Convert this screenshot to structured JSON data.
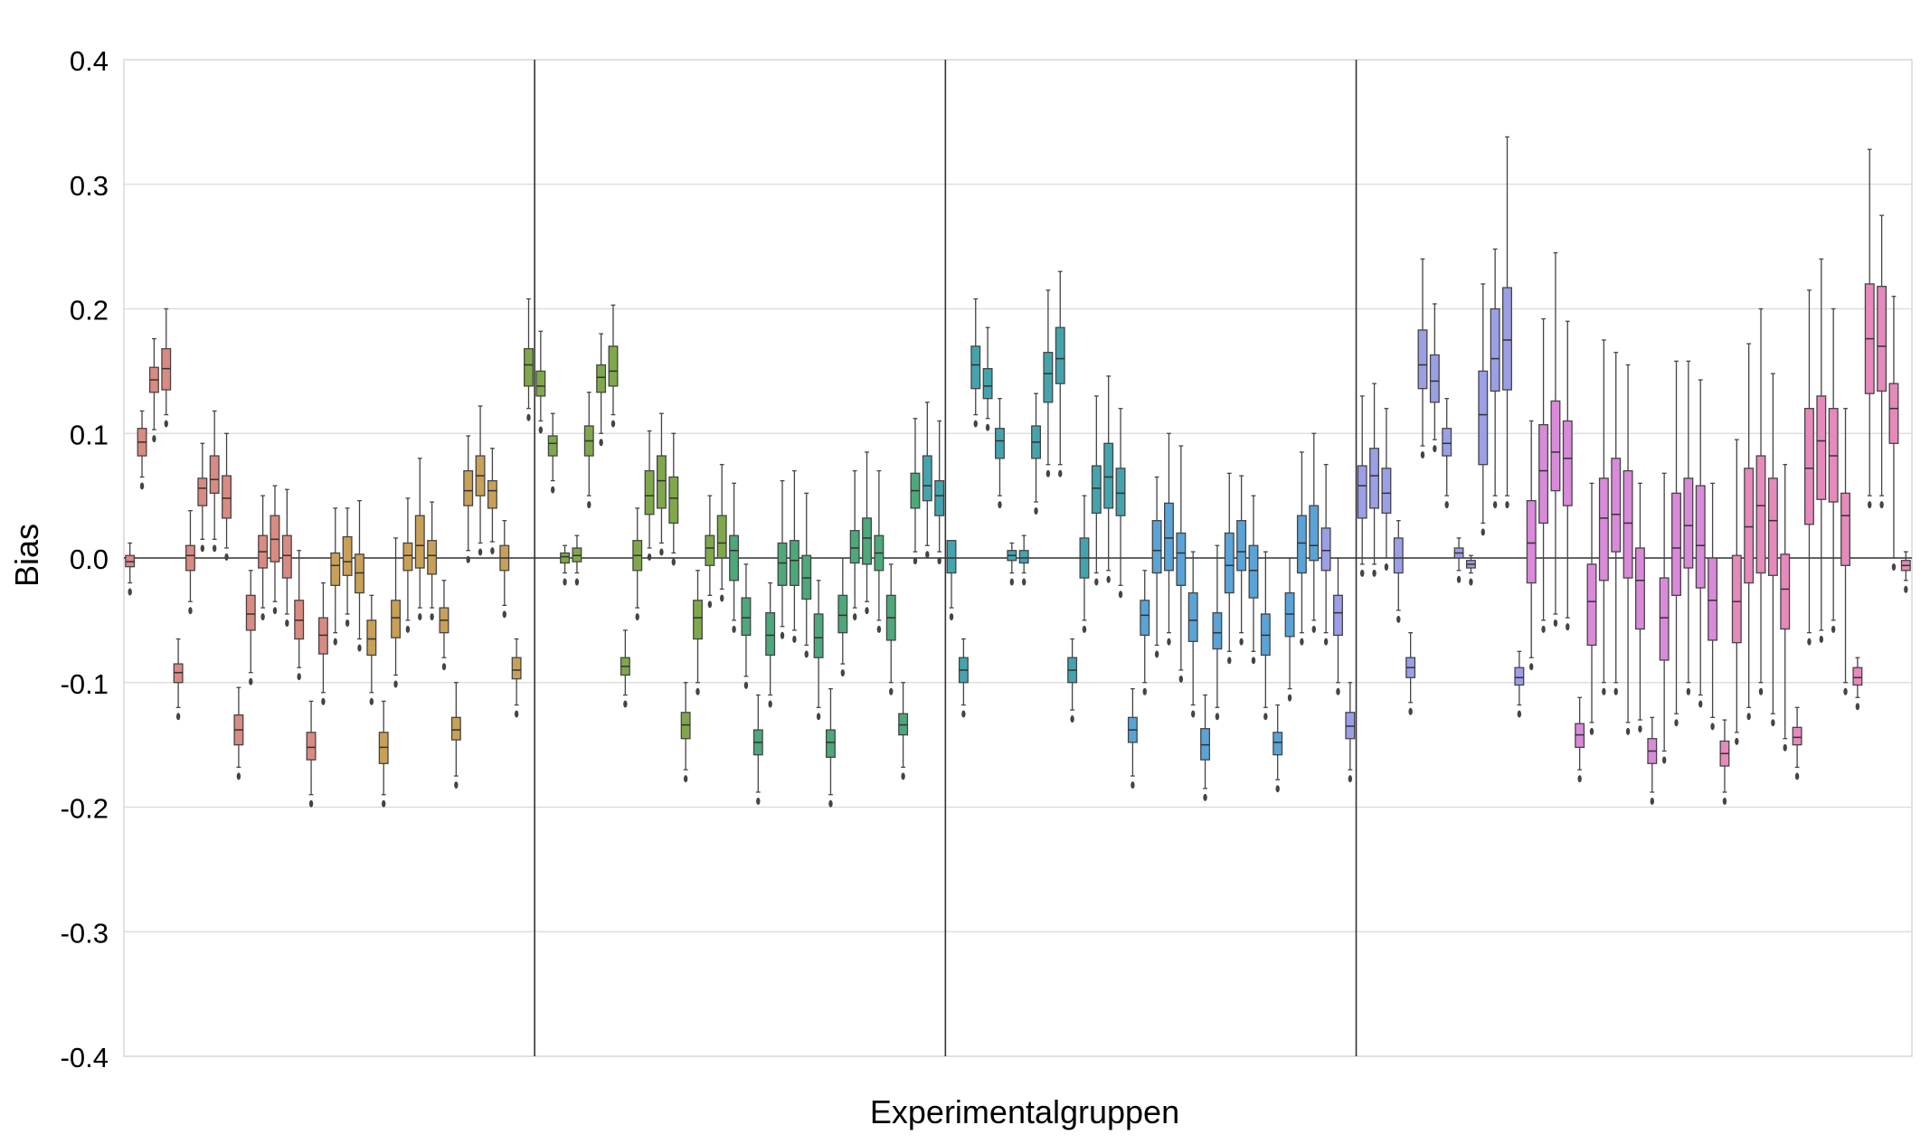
{
  "chart_data": {
    "type": "box",
    "title": "",
    "xlabel": "Experimentalgruppen",
    "ylabel": "Bias",
    "ylim": [
      -0.4,
      0.4
    ],
    "yticks": [
      0.4,
      0.3,
      0.2,
      0.1,
      0.0,
      -0.1,
      -0.2,
      -0.3,
      -0.4
    ],
    "ytick_labels": [
      "0.4",
      "0.3",
      "0.2",
      "0.1",
      "0.0",
      "-0.1",
      "-0.2",
      "-0.3",
      "-0.4"
    ],
    "grid": "horizontal",
    "reference_line": 0.0,
    "group_separators_after_box": [
      34,
      68,
      102
    ],
    "group_colors": [
      "#d98a82",
      "#c9a057",
      "#7fa84b",
      "#4da87a",
      "#44a4ad",
      "#5aa3d6",
      "#9b9fe6",
      "#d98ad9",
      "#e58abb"
    ],
    "boxes": [
      {
        "q1": -0.007,
        "median": -0.003,
        "q3": 0.002,
        "wlo": -0.02,
        "whi": 0.012
      },
      {
        "q1": 0.082,
        "median": 0.093,
        "q3": 0.104,
        "wlo": 0.065,
        "whi": 0.118
      },
      {
        "q1": 0.133,
        "median": 0.143,
        "q3": 0.153,
        "wlo": 0.103,
        "whi": 0.176
      },
      {
        "q1": 0.135,
        "median": 0.152,
        "q3": 0.168,
        "wlo": 0.115,
        "whi": 0.2
      },
      {
        "q1": -0.1,
        "median": -0.092,
        "q3": -0.085,
        "wlo": -0.12,
        "whi": -0.065
      },
      {
        "q1": -0.01,
        "median": 0.002,
        "q3": 0.01,
        "wlo": -0.035,
        "whi": 0.038
      },
      {
        "q1": 0.042,
        "median": 0.056,
        "q3": 0.064,
        "wlo": 0.015,
        "whi": 0.092
      },
      {
        "q1": 0.052,
        "median": 0.063,
        "q3": 0.082,
        "wlo": 0.015,
        "whi": 0.118
      },
      {
        "q1": 0.032,
        "median": 0.048,
        "q3": 0.066,
        "wlo": 0.008,
        "whi": 0.1
      },
      {
        "q1": -0.15,
        "median": -0.138,
        "q3": -0.126,
        "wlo": -0.168,
        "whi": -0.104
      },
      {
        "q1": -0.058,
        "median": -0.045,
        "q3": -0.03,
        "wlo": -0.092,
        "whi": -0.01
      },
      {
        "q1": -0.008,
        "median": 0.005,
        "q3": 0.018,
        "wlo": -0.04,
        "whi": 0.05
      },
      {
        "q1": -0.003,
        "median": 0.015,
        "q3": 0.034,
        "wlo": -0.035,
        "whi": 0.058
      },
      {
        "q1": -0.016,
        "median": 0.002,
        "q3": 0.018,
        "wlo": -0.045,
        "whi": 0.055
      },
      {
        "q1": -0.065,
        "median": -0.05,
        "q3": -0.034,
        "wlo": -0.088,
        "whi": 0.006
      },
      {
        "q1": -0.162,
        "median": -0.152,
        "q3": -0.14,
        "wlo": -0.19,
        "whi": -0.115
      },
      {
        "q1": -0.077,
        "median": -0.062,
        "q3": -0.048,
        "wlo": -0.108,
        "whi": -0.02
      },
      {
        "q1": -0.022,
        "median": -0.006,
        "q3": 0.004,
        "wlo": -0.06,
        "whi": 0.04
      },
      {
        "q1": -0.014,
        "median": -0.003,
        "q3": 0.017,
        "wlo": -0.045,
        "whi": 0.04
      },
      {
        "q1": -0.028,
        "median": -0.012,
        "q3": 0.003,
        "wlo": -0.065,
        "whi": 0.046
      },
      {
        "q1": -0.078,
        "median": -0.065,
        "q3": -0.05,
        "wlo": -0.108,
        "whi": -0.03
      },
      {
        "q1": -0.165,
        "median": -0.152,
        "q3": -0.14,
        "wlo": -0.19,
        "whi": -0.115
      },
      {
        "q1": -0.064,
        "median": -0.048,
        "q3": -0.034,
        "wlo": -0.094,
        "whi": 0.016
      },
      {
        "q1": -0.01,
        "median": 0.002,
        "q3": 0.012,
        "wlo": -0.05,
        "whi": 0.048
      },
      {
        "q1": -0.008,
        "median": 0.01,
        "q3": 0.034,
        "wlo": -0.04,
        "whi": 0.08
      },
      {
        "q1": -0.013,
        "median": 0.002,
        "q3": 0.014,
        "wlo": -0.04,
        "whi": 0.045
      },
      {
        "q1": -0.06,
        "median": -0.05,
        "q3": -0.04,
        "wlo": -0.08,
        "whi": -0.018
      },
      {
        "q1": -0.146,
        "median": -0.138,
        "q3": -0.128,
        "wlo": -0.175,
        "whi": -0.1
      },
      {
        "q1": 0.042,
        "median": 0.054,
        "q3": 0.07,
        "wlo": 0.006,
        "whi": 0.098
      },
      {
        "q1": 0.05,
        "median": 0.066,
        "q3": 0.082,
        "wlo": 0.012,
        "whi": 0.122
      },
      {
        "q1": 0.04,
        "median": 0.054,
        "q3": 0.062,
        "wlo": 0.013,
        "whi": 0.088
      },
      {
        "q1": -0.01,
        "median": 0.0,
        "q3": 0.01,
        "wlo": -0.038,
        "whi": 0.03
      },
      {
        "q1": -0.097,
        "median": -0.09,
        "q3": -0.08,
        "wlo": -0.118,
        "whi": -0.065
      },
      {
        "q1": 0.138,
        "median": 0.155,
        "q3": 0.168,
        "wlo": 0.12,
        "whi": 0.208
      },
      {
        "q1": 0.13,
        "median": 0.138,
        "q3": 0.15,
        "wlo": 0.11,
        "whi": 0.182
      },
      {
        "q1": 0.082,
        "median": 0.092,
        "q3": 0.098,
        "wlo": 0.062,
        "whi": 0.116
      },
      {
        "q1": -0.004,
        "median": 0.001,
        "q3": 0.004,
        "wlo": -0.012,
        "whi": 0.01
      },
      {
        "q1": -0.003,
        "median": 0.002,
        "q3": 0.008,
        "wlo": -0.012,
        "whi": 0.018
      },
      {
        "q1": 0.082,
        "median": 0.094,
        "q3": 0.106,
        "wlo": 0.05,
        "whi": 0.133
      },
      {
        "q1": 0.133,
        "median": 0.145,
        "q3": 0.155,
        "wlo": 0.1,
        "whi": 0.18
      },
      {
        "q1": 0.138,
        "median": 0.15,
        "q3": 0.17,
        "wlo": 0.115,
        "whi": 0.203
      },
      {
        "q1": -0.094,
        "median": -0.087,
        "q3": -0.08,
        "wlo": -0.11,
        "whi": -0.058
      },
      {
        "q1": -0.01,
        "median": 0.002,
        "q3": 0.014,
        "wlo": -0.04,
        "whi": 0.04
      },
      {
        "q1": 0.035,
        "median": 0.05,
        "q3": 0.07,
        "wlo": 0.008,
        "whi": 0.102
      },
      {
        "q1": 0.04,
        "median": 0.062,
        "q3": 0.082,
        "wlo": 0.012,
        "whi": 0.116
      },
      {
        "q1": 0.028,
        "median": 0.048,
        "q3": 0.065,
        "wlo": 0.004,
        "whi": 0.1
      },
      {
        "q1": -0.145,
        "median": -0.134,
        "q3": -0.124,
        "wlo": -0.17,
        "whi": -0.1
      },
      {
        "q1": -0.065,
        "median": -0.048,
        "q3": -0.034,
        "wlo": -0.1,
        "whi": -0.01
      },
      {
        "q1": -0.006,
        "median": 0.008,
        "q3": 0.018,
        "wlo": -0.03,
        "whi": 0.05
      },
      {
        "q1": 0.0,
        "median": 0.012,
        "q3": 0.034,
        "wlo": -0.025,
        "whi": 0.075
      },
      {
        "q1": -0.018,
        "median": 0.006,
        "q3": 0.018,
        "wlo": -0.05,
        "whi": 0.06
      },
      {
        "q1": -0.062,
        "median": -0.048,
        "q3": -0.032,
        "wlo": -0.095,
        "whi": -0.005
      },
      {
        "q1": -0.158,
        "median": -0.148,
        "q3": -0.138,
        "wlo": -0.188,
        "whi": -0.11
      },
      {
        "q1": -0.078,
        "median": -0.062,
        "q3": -0.044,
        "wlo": -0.11,
        "whi": -0.02
      },
      {
        "q1": -0.022,
        "median": -0.004,
        "q3": 0.012,
        "wlo": -0.055,
        "whi": 0.062
      },
      {
        "q1": -0.022,
        "median": -0.002,
        "q3": 0.014,
        "wlo": -0.058,
        "whi": 0.07
      },
      {
        "q1": -0.033,
        "median": -0.016,
        "q3": 0.002,
        "wlo": -0.07,
        "whi": 0.052
      },
      {
        "q1": -0.08,
        "median": -0.064,
        "q3": -0.045,
        "wlo": -0.12,
        "whi": -0.018
      },
      {
        "q1": -0.16,
        "median": -0.148,
        "q3": -0.138,
        "wlo": -0.19,
        "whi": -0.105
      },
      {
        "q1": -0.06,
        "median": -0.046,
        "q3": -0.03,
        "wlo": -0.085,
        "whi": 0.0
      },
      {
        "q1": -0.004,
        "median": 0.008,
        "q3": 0.022,
        "wlo": -0.04,
        "whi": 0.07
      },
      {
        "q1": -0.005,
        "median": 0.016,
        "q3": 0.032,
        "wlo": -0.035,
        "whi": 0.085
      },
      {
        "q1": -0.01,
        "median": 0.004,
        "q3": 0.018,
        "wlo": -0.05,
        "whi": 0.07
      },
      {
        "q1": -0.066,
        "median": -0.048,
        "q3": -0.03,
        "wlo": -0.1,
        "whi": -0.005
      },
      {
        "q1": -0.142,
        "median": -0.134,
        "q3": -0.125,
        "wlo": -0.168,
        "whi": -0.1
      },
      {
        "q1": 0.04,
        "median": 0.054,
        "q3": 0.068,
        "wlo": 0.005,
        "whi": 0.112
      },
      {
        "q1": 0.046,
        "median": 0.058,
        "q3": 0.082,
        "wlo": 0.01,
        "whi": 0.125
      },
      {
        "q1": 0.034,
        "median": 0.05,
        "q3": 0.062,
        "wlo": 0.005,
        "whi": 0.11
      },
      {
        "q1": -0.012,
        "median": 0.0,
        "q3": 0.014,
        "wlo": -0.04,
        "whi": 0.012
      },
      {
        "q1": -0.1,
        "median": -0.09,
        "q3": -0.08,
        "wlo": -0.118,
        "whi": -0.065
      },
      {
        "q1": 0.136,
        "median": 0.155,
        "q3": 0.17,
        "wlo": 0.115,
        "whi": 0.208
      },
      {
        "q1": 0.128,
        "median": 0.138,
        "q3": 0.152,
        "wlo": 0.112,
        "whi": 0.185
      },
      {
        "q1": 0.08,
        "median": 0.094,
        "q3": 0.104,
        "wlo": 0.05,
        "whi": 0.128
      },
      {
        "q1": -0.002,
        "median": 0.002,
        "q3": 0.006,
        "wlo": -0.012,
        "whi": 0.012
      },
      {
        "q1": -0.004,
        "median": 0.0,
        "q3": 0.006,
        "wlo": -0.012,
        "whi": 0.018
      },
      {
        "q1": 0.08,
        "median": 0.093,
        "q3": 0.106,
        "wlo": 0.045,
        "whi": 0.132
      },
      {
        "q1": 0.125,
        "median": 0.148,
        "q3": 0.165,
        "wlo": 0.075,
        "whi": 0.215
      },
      {
        "q1": 0.14,
        "median": 0.16,
        "q3": 0.185,
        "wlo": 0.075,
        "whi": 0.23
      },
      {
        "q1": -0.1,
        "median": -0.09,
        "q3": -0.08,
        "wlo": -0.122,
        "whi": -0.065
      },
      {
        "q1": -0.016,
        "median": 0.0,
        "q3": 0.016,
        "wlo": -0.05,
        "whi": 0.05
      },
      {
        "q1": 0.036,
        "median": 0.056,
        "q3": 0.074,
        "wlo": -0.012,
        "whi": 0.13
      },
      {
        "q1": 0.04,
        "median": 0.065,
        "q3": 0.092,
        "wlo": -0.01,
        "whi": 0.146
      },
      {
        "q1": 0.034,
        "median": 0.052,
        "q3": 0.072,
        "wlo": -0.022,
        "whi": 0.12
      },
      {
        "q1": -0.148,
        "median": -0.138,
        "q3": -0.128,
        "wlo": -0.175,
        "whi": -0.105
      },
      {
        "q1": -0.062,
        "median": -0.046,
        "q3": -0.034,
        "wlo": -0.1,
        "whi": -0.01
      },
      {
        "q1": -0.012,
        "median": 0.006,
        "q3": 0.03,
        "wlo": -0.07,
        "whi": 0.065
      },
      {
        "q1": -0.01,
        "median": 0.016,
        "q3": 0.044,
        "wlo": -0.06,
        "whi": 0.1
      },
      {
        "q1": -0.022,
        "median": 0.004,
        "q3": 0.02,
        "wlo": -0.09,
        "whi": 0.09
      },
      {
        "q1": -0.067,
        "median": -0.05,
        "q3": -0.028,
        "wlo": -0.118,
        "whi": 0.005
      },
      {
        "q1": -0.162,
        "median": -0.15,
        "q3": -0.137,
        "wlo": -0.185,
        "whi": -0.11
      },
      {
        "q1": -0.073,
        "median": -0.06,
        "q3": -0.044,
        "wlo": -0.12,
        "whi": 0.01
      },
      {
        "q1": -0.028,
        "median": -0.006,
        "q3": 0.02,
        "wlo": -0.075,
        "whi": 0.068
      },
      {
        "q1": -0.01,
        "median": 0.005,
        "q3": 0.03,
        "wlo": -0.06,
        "whi": 0.066
      },
      {
        "q1": -0.032,
        "median": -0.01,
        "q3": 0.01,
        "wlo": -0.075,
        "whi": 0.05
      },
      {
        "q1": -0.078,
        "median": -0.062,
        "q3": -0.045,
        "wlo": -0.12,
        "whi": 0.005
      },
      {
        "q1": -0.158,
        "median": -0.148,
        "q3": -0.14,
        "wlo": -0.178,
        "whi": -0.118
      },
      {
        "q1": -0.063,
        "median": -0.045,
        "q3": -0.028,
        "wlo": -0.105,
        "whi": 0.0
      },
      {
        "q1": -0.012,
        "median": 0.012,
        "q3": 0.034,
        "wlo": -0.06,
        "whi": 0.085
      },
      {
        "q1": -0.002,
        "median": 0.01,
        "q3": 0.042,
        "wlo": -0.05,
        "whi": 0.1
      },
      {
        "q1": -0.01,
        "median": 0.006,
        "q3": 0.024,
        "wlo": -0.06,
        "whi": 0.075
      },
      {
        "q1": -0.062,
        "median": -0.044,
        "q3": -0.03,
        "wlo": -0.1,
        "whi": 0.0
      },
      {
        "q1": -0.145,
        "median": -0.135,
        "q3": -0.124,
        "wlo": -0.17,
        "whi": -0.1
      },
      {
        "q1": 0.032,
        "median": 0.058,
        "q3": 0.074,
        "wlo": -0.005,
        "whi": 0.13
      },
      {
        "q1": 0.04,
        "median": 0.066,
        "q3": 0.088,
        "wlo": -0.005,
        "whi": 0.14
      },
      {
        "q1": 0.036,
        "median": 0.052,
        "q3": 0.072,
        "wlo": 0.0,
        "whi": 0.12
      },
      {
        "q1": -0.012,
        "median": 0.0,
        "q3": 0.016,
        "wlo": -0.042,
        "whi": 0.03
      },
      {
        "q1": -0.096,
        "median": -0.088,
        "q3": -0.08,
        "wlo": -0.116,
        "whi": -0.06
      },
      {
        "q1": 0.136,
        "median": 0.155,
        "q3": 0.183,
        "wlo": 0.09,
        "whi": 0.24
      },
      {
        "q1": 0.125,
        "median": 0.142,
        "q3": 0.163,
        "wlo": 0.095,
        "whi": 0.204
      },
      {
        "q1": 0.082,
        "median": 0.092,
        "q3": 0.104,
        "wlo": 0.05,
        "whi": 0.128
      },
      {
        "q1": 0.0,
        "median": 0.004,
        "q3": 0.008,
        "wlo": -0.01,
        "whi": 0.016
      },
      {
        "q1": -0.008,
        "median": -0.005,
        "q3": -0.002,
        "wlo": -0.012,
        "whi": 0.002
      },
      {
        "q1": 0.075,
        "median": 0.115,
        "q3": 0.15,
        "wlo": 0.028,
        "whi": 0.22
      },
      {
        "q1": 0.134,
        "median": 0.16,
        "q3": 0.2,
        "wlo": 0.05,
        "whi": 0.248
      },
      {
        "q1": 0.135,
        "median": 0.175,
        "q3": 0.217,
        "wlo": 0.05,
        "whi": 0.338
      },
      {
        "q1": -0.102,
        "median": -0.096,
        "q3": -0.088,
        "wlo": -0.118,
        "whi": -0.075
      },
      {
        "q1": -0.02,
        "median": 0.012,
        "q3": 0.046,
        "wlo": -0.08,
        "whi": 0.11
      },
      {
        "q1": 0.028,
        "median": 0.07,
        "q3": 0.107,
        "wlo": -0.05,
        "whi": 0.192
      },
      {
        "q1": 0.054,
        "median": 0.085,
        "q3": 0.126,
        "wlo": -0.045,
        "whi": 0.245
      },
      {
        "q1": 0.042,
        "median": 0.08,
        "q3": 0.11,
        "wlo": -0.048,
        "whi": 0.19
      },
      {
        "q1": -0.152,
        "median": -0.142,
        "q3": -0.133,
        "wlo": -0.17,
        "whi": -0.112
      },
      {
        "q1": -0.07,
        "median": -0.035,
        "q3": -0.005,
        "wlo": -0.132,
        "whi": 0.06
      },
      {
        "q1": -0.018,
        "median": 0.032,
        "q3": 0.064,
        "wlo": -0.1,
        "whi": 0.175
      },
      {
        "q1": 0.005,
        "median": 0.035,
        "q3": 0.08,
        "wlo": -0.1,
        "whi": 0.165
      },
      {
        "q1": -0.016,
        "median": 0.028,
        "q3": 0.07,
        "wlo": -0.132,
        "whi": 0.155
      },
      {
        "q1": -0.057,
        "median": -0.018,
        "q3": 0.008,
        "wlo": -0.13,
        "whi": 0.06
      },
      {
        "q1": -0.165,
        "median": -0.155,
        "q3": -0.145,
        "wlo": -0.188,
        "whi": -0.128
      },
      {
        "q1": -0.082,
        "median": -0.048,
        "q3": -0.016,
        "wlo": -0.155,
        "whi": 0.068
      },
      {
        "q1": -0.03,
        "median": 0.008,
        "q3": 0.052,
        "wlo": -0.125,
        "whi": 0.158
      },
      {
        "q1": -0.008,
        "median": 0.026,
        "q3": 0.064,
        "wlo": -0.1,
        "whi": 0.158
      },
      {
        "q1": -0.024,
        "median": 0.01,
        "q3": 0.058,
        "wlo": -0.11,
        "whi": 0.143
      },
      {
        "q1": -0.066,
        "median": -0.034,
        "q3": 0.0,
        "wlo": -0.128,
        "whi": 0.06
      },
      {
        "q1": -0.167,
        "median": -0.157,
        "q3": -0.147,
        "wlo": -0.188,
        "whi": -0.13
      },
      {
        "q1": -0.068,
        "median": -0.035,
        "q3": 0.002,
        "wlo": -0.14,
        "whi": 0.095
      },
      {
        "q1": -0.02,
        "median": 0.025,
        "q3": 0.072,
        "wlo": -0.12,
        "whi": 0.172
      },
      {
        "q1": -0.012,
        "median": 0.042,
        "q3": 0.082,
        "wlo": -0.1,
        "whi": 0.2
      },
      {
        "q1": -0.014,
        "median": 0.03,
        "q3": 0.064,
        "wlo": -0.125,
        "whi": 0.148
      },
      {
        "q1": -0.057,
        "median": -0.025,
        "q3": 0.003,
        "wlo": -0.145,
        "whi": 0.075
      },
      {
        "q1": -0.15,
        "median": -0.144,
        "q3": -0.136,
        "wlo": -0.168,
        "whi": -0.12
      },
      {
        "q1": 0.027,
        "median": 0.072,
        "q3": 0.12,
        "wlo": -0.06,
        "whi": 0.215
      },
      {
        "q1": 0.047,
        "median": 0.094,
        "q3": 0.13,
        "wlo": -0.058,
        "whi": 0.24
      },
      {
        "q1": 0.045,
        "median": 0.082,
        "q3": 0.12,
        "wlo": -0.05,
        "whi": 0.2
      },
      {
        "q1": -0.006,
        "median": 0.034,
        "q3": 0.052,
        "wlo": -0.1,
        "whi": 0.12
      },
      {
        "q1": -0.102,
        "median": -0.096,
        "q3": -0.088,
        "wlo": -0.112,
        "whi": -0.08
      },
      {
        "q1": 0.132,
        "median": 0.176,
        "q3": 0.22,
        "wlo": 0.05,
        "whi": 0.328
      },
      {
        "q1": 0.134,
        "median": 0.17,
        "q3": 0.218,
        "wlo": 0.05,
        "whi": 0.275
      },
      {
        "q1": 0.092,
        "median": 0.12,
        "q3": 0.14,
        "wlo": 0.0,
        "whi": 0.21
      },
      {
        "q1": -0.01,
        "median": -0.006,
        "q3": -0.002,
        "wlo": -0.018,
        "whi": 0.005
      }
    ]
  }
}
